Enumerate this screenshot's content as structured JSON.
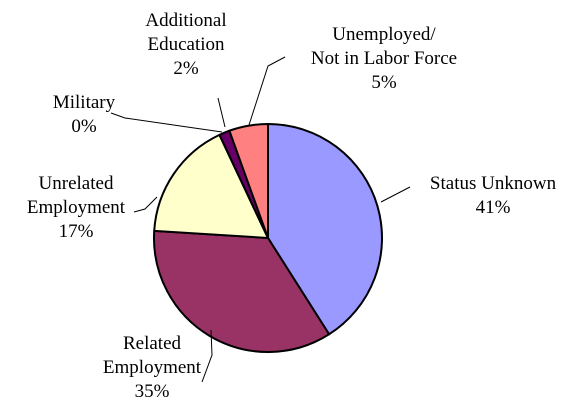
{
  "chart_data": {
    "type": "pie",
    "start_angle_deg": 0,
    "direction": "clockwise",
    "slices": [
      {
        "label_lines": [
          "Status Unknown"
        ],
        "pct_label": "41%",
        "value": 41,
        "color": "#9999ff"
      },
      {
        "label_lines": [
          "Related",
          "Employment"
        ],
        "pct_label": "35%",
        "value": 35,
        "color": "#993366"
      },
      {
        "label_lines": [
          "Unrelated",
          "Employment"
        ],
        "pct_label": "17%",
        "value": 17,
        "color": "#ffffcc"
      },
      {
        "label_lines": [
          "Military"
        ],
        "pct_label": "0%",
        "value": 0,
        "color": "#ccffff"
      },
      {
        "label_lines": [
          "Additional",
          "Education"
        ],
        "pct_label": "2%",
        "value": 1.5,
        "color": "#660066"
      },
      {
        "label_lines": [
          "Unemployed/",
          "Not in Labor Force"
        ],
        "pct_label": "5%",
        "value": 5.5,
        "color": "#ff8080"
      }
    ],
    "legend": false
  }
}
